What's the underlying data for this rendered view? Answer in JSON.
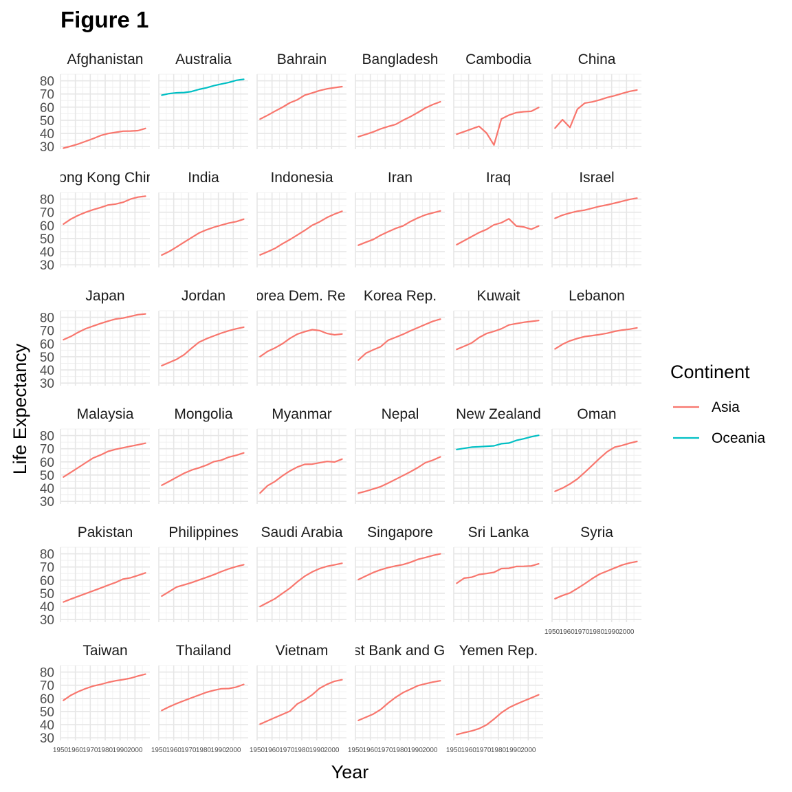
{
  "chart_data": {
    "type": "line",
    "title": "Figure 1",
    "xlabel": "Year",
    "ylabel": "Life Expectancy",
    "x": [
      1952,
      1957,
      1962,
      1967,
      1972,
      1977,
      1982,
      1987,
      1992,
      1997,
      2002,
      2007
    ],
    "xticks": [
      "1950",
      "1960",
      "1970",
      "1980",
      "1990",
      "2000"
    ],
    "yticks": [
      "30",
      "40",
      "50",
      "60",
      "70",
      "80"
    ],
    "xlim": [
      1950,
      2010
    ],
    "ylim": [
      28,
      85
    ],
    "grid": true,
    "legend": {
      "title": "Continent",
      "position": "right",
      "entries": [
        {
          "name": "Asia",
          "color": "#F8766D"
        },
        {
          "name": "Oceania",
          "color": "#00BFC4"
        }
      ]
    },
    "panels": [
      {
        "name": "Afghanistan",
        "continent": "Asia",
        "values": [
          28.8,
          30.3,
          32.0,
          34.0,
          36.1,
          38.4,
          39.9,
          40.8,
          41.7,
          41.8,
          42.1,
          43.8
        ]
      },
      {
        "name": "Australia",
        "continent": "Oceania",
        "values": [
          69.1,
          70.3,
          70.9,
          71.1,
          71.9,
          73.5,
          74.7,
          76.3,
          77.6,
          78.8,
          80.4,
          81.2
        ]
      },
      {
        "name": "Bahrain",
        "continent": "Asia",
        "values": [
          50.9,
          53.8,
          56.9,
          59.9,
          63.3,
          65.6,
          69.1,
          70.8,
          72.6,
          73.9,
          74.8,
          75.6
        ]
      },
      {
        "name": "Bangladesh",
        "continent": "Asia",
        "values": [
          37.5,
          39.3,
          41.2,
          43.5,
          45.3,
          46.9,
          50.0,
          52.8,
          56.0,
          59.4,
          62.0,
          64.1
        ]
      },
      {
        "name": "Cambodia",
        "continent": "Asia",
        "values": [
          39.4,
          41.4,
          43.4,
          45.4,
          40.3,
          31.2,
          51.0,
          53.9,
          55.8,
          56.5,
          56.8,
          59.7
        ]
      },
      {
        "name": "China",
        "continent": "Asia",
        "values": [
          44.0,
          50.5,
          44.5,
          58.4,
          63.1,
          64.0,
          65.5,
          67.3,
          68.7,
          70.4,
          72.0,
          73.0
        ]
      },
      {
        "name": "Hong Kong China",
        "continent": "Asia",
        "values": [
          61.0,
          64.8,
          67.7,
          70.0,
          72.0,
          73.6,
          75.5,
          76.2,
          77.6,
          80.0,
          81.5,
          82.2
        ]
      },
      {
        "name": "India",
        "continent": "Asia",
        "values": [
          37.4,
          40.2,
          43.6,
          47.2,
          50.7,
          54.2,
          56.6,
          58.6,
          60.2,
          61.8,
          62.9,
          64.7
        ]
      },
      {
        "name": "Indonesia",
        "continent": "Asia",
        "values": [
          37.5,
          39.9,
          42.5,
          46.0,
          49.2,
          52.7,
          56.2,
          60.1,
          62.7,
          66.0,
          68.6,
          70.7
        ]
      },
      {
        "name": "Iran",
        "continent": "Asia",
        "values": [
          44.9,
          47.2,
          49.3,
          52.5,
          55.2,
          57.7,
          59.6,
          63.0,
          65.7,
          68.0,
          69.5,
          71.0
        ]
      },
      {
        "name": "Iraq",
        "continent": "Asia",
        "values": [
          45.3,
          48.4,
          51.5,
          54.5,
          56.9,
          60.4,
          62.0,
          65.0,
          59.5,
          58.8,
          57.0,
          59.5
        ]
      },
      {
        "name": "Israel",
        "continent": "Asia",
        "values": [
          65.4,
          67.8,
          69.4,
          70.8,
          71.6,
          73.1,
          74.5,
          75.6,
          76.9,
          78.3,
          79.7,
          80.7
        ]
      },
      {
        "name": "Japan",
        "continent": "Asia",
        "values": [
          63.0,
          65.5,
          68.7,
          71.4,
          73.4,
          75.4,
          77.1,
          78.7,
          79.4,
          80.7,
          82.0,
          82.6
        ]
      },
      {
        "name": "Jordan",
        "continent": "Asia",
        "values": [
          43.2,
          45.7,
          48.1,
          51.6,
          56.5,
          61.1,
          63.7,
          65.9,
          68.0,
          69.8,
          71.3,
          72.5
        ]
      },
      {
        "name": "Korea Dem. Rep.",
        "continent": "Asia",
        "values": [
          50.1,
          54.1,
          56.7,
          59.9,
          64.0,
          67.2,
          69.1,
          70.6,
          69.9,
          67.7,
          66.7,
          67.3
        ]
      },
      {
        "name": "Korea Rep.",
        "continent": "Asia",
        "values": [
          47.5,
          52.7,
          55.3,
          57.7,
          62.6,
          64.8,
          67.1,
          69.8,
          72.2,
          74.6,
          77.0,
          78.6
        ]
      },
      {
        "name": "Kuwait",
        "continent": "Asia",
        "values": [
          55.6,
          58.0,
          60.5,
          64.6,
          67.7,
          69.3,
          71.3,
          74.2,
          75.2,
          76.2,
          76.9,
          77.6
        ]
      },
      {
        "name": "Lebanon",
        "continent": "Asia",
        "values": [
          55.9,
          59.5,
          62.1,
          63.9,
          65.4,
          66.1,
          66.9,
          67.9,
          69.3,
          70.3,
          71.0,
          72.0
        ]
      },
      {
        "name": "Malaysia",
        "continent": "Asia",
        "values": [
          48.5,
          52.1,
          55.7,
          59.4,
          63.0,
          65.3,
          68.0,
          69.5,
          70.7,
          71.9,
          73.0,
          74.2
        ]
      },
      {
        "name": "Mongolia",
        "continent": "Asia",
        "values": [
          42.2,
          45.2,
          48.3,
          51.3,
          53.8,
          55.5,
          57.5,
          60.2,
          61.3,
          63.6,
          65.0,
          66.8
        ]
      },
      {
        "name": "Myanmar",
        "continent": "Asia",
        "values": [
          36.3,
          41.9,
          45.1,
          49.4,
          53.1,
          56.1,
          58.1,
          58.3,
          59.3,
          60.3,
          59.9,
          62.1
        ]
      },
      {
        "name": "Nepal",
        "continent": "Asia",
        "values": [
          36.2,
          37.7,
          39.4,
          41.2,
          43.9,
          46.7,
          49.6,
          52.5,
          55.7,
          59.4,
          61.3,
          63.8
        ]
      },
      {
        "name": "New Zealand",
        "continent": "Oceania",
        "values": [
          69.4,
          70.3,
          71.2,
          71.5,
          71.9,
          72.2,
          73.8,
          74.3,
          76.3,
          77.6,
          79.1,
          80.2
        ]
      },
      {
        "name": "Oman",
        "continent": "Asia",
        "values": [
          37.6,
          40.1,
          43.2,
          47.0,
          52.1,
          57.4,
          62.7,
          67.7,
          71.2,
          72.5,
          74.2,
          75.6
        ]
      },
      {
        "name": "Pakistan",
        "continent": "Asia",
        "values": [
          43.4,
          45.6,
          47.7,
          49.8,
          51.9,
          54.0,
          56.2,
          58.2,
          60.8,
          61.8,
          63.6,
          65.5
        ]
      },
      {
        "name": "Philippines",
        "continent": "Asia",
        "values": [
          47.8,
          51.3,
          54.8,
          56.4,
          58.1,
          60.1,
          62.1,
          64.2,
          66.5,
          68.6,
          70.3,
          71.7
        ]
      },
      {
        "name": "Saudi Arabia",
        "continent": "Asia",
        "values": [
          39.9,
          42.9,
          45.9,
          49.9,
          53.9,
          58.7,
          63.0,
          66.3,
          68.8,
          70.5,
          71.6,
          72.8
        ]
      },
      {
        "name": "Singapore",
        "continent": "Asia",
        "values": [
          60.4,
          63.2,
          65.8,
          67.9,
          69.5,
          70.8,
          71.8,
          73.6,
          75.8,
          77.2,
          78.8,
          80.0
        ]
      },
      {
        "name": "Sri Lanka",
        "continent": "Asia",
        "values": [
          57.6,
          61.5,
          62.2,
          64.3,
          65.0,
          65.9,
          68.8,
          69.0,
          70.4,
          70.5,
          70.8,
          72.4
        ]
      },
      {
        "name": "Syria",
        "continent": "Asia",
        "values": [
          45.9,
          48.3,
          50.3,
          53.7,
          57.3,
          61.2,
          64.6,
          66.9,
          69.2,
          71.5,
          73.1,
          74.1
        ]
      },
      {
        "name": "Taiwan",
        "continent": "Asia",
        "values": [
          58.5,
          62.4,
          65.2,
          67.5,
          69.4,
          70.6,
          72.2,
          73.4,
          74.3,
          75.3,
          77.0,
          78.4
        ]
      },
      {
        "name": "Thailand",
        "continent": "Asia",
        "values": [
          50.8,
          53.6,
          56.1,
          58.3,
          60.4,
          62.5,
          64.6,
          66.1,
          67.3,
          67.5,
          68.6,
          70.6
        ]
      },
      {
        "name": "Vietnam",
        "continent": "Asia",
        "values": [
          40.4,
          42.9,
          45.4,
          47.8,
          50.3,
          55.8,
          58.8,
          62.8,
          67.7,
          70.7,
          73.0,
          74.2
        ]
      },
      {
        "name": "West Bank and Gaza",
        "continent": "Asia",
        "values": [
          43.2,
          45.7,
          48.1,
          51.6,
          56.5,
          60.8,
          64.4,
          67.0,
          69.7,
          71.1,
          72.4,
          73.4
        ]
      },
      {
        "name": "Yemen Rep.",
        "continent": "Asia",
        "values": [
          32.5,
          33.9,
          35.2,
          37.0,
          39.8,
          44.2,
          49.1,
          52.9,
          55.6,
          58.0,
          60.3,
          62.7
        ]
      }
    ]
  }
}
